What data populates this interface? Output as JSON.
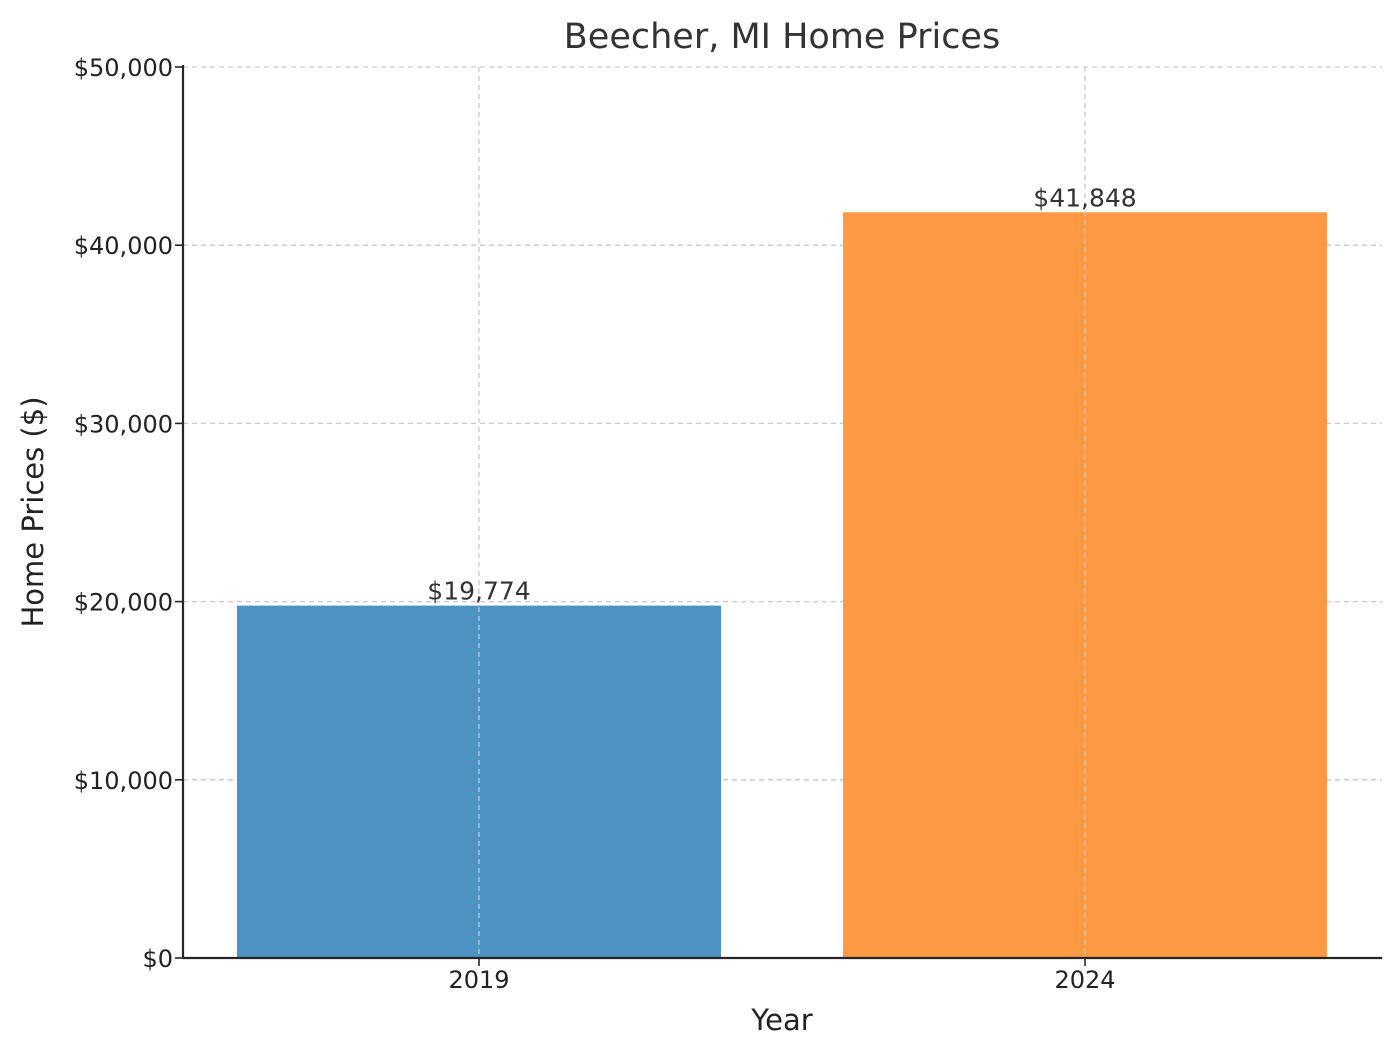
{
  "colors": {
    "bar_2019": "#4c92c3",
    "bar_2024": "#ff9a42"
  },
  "chart_data": {
    "type": "bar",
    "title": "Beecher, MI Home Prices",
    "xlabel": "Year",
    "ylabel": "Home Prices ($)",
    "categories": [
      "2019",
      "2024"
    ],
    "values": [
      19774,
      41848
    ],
    "value_labels": [
      "$19,774",
      "$41,848"
    ],
    "ylim": [
      0,
      50000
    ],
    "yticks": [
      0,
      10000,
      20000,
      30000,
      40000,
      50000
    ],
    "ytick_labels": [
      "$0",
      "$10,000",
      "$20,000",
      "$30,000",
      "$40,000",
      "$50,000"
    ],
    "grid": true,
    "legend": "none"
  }
}
